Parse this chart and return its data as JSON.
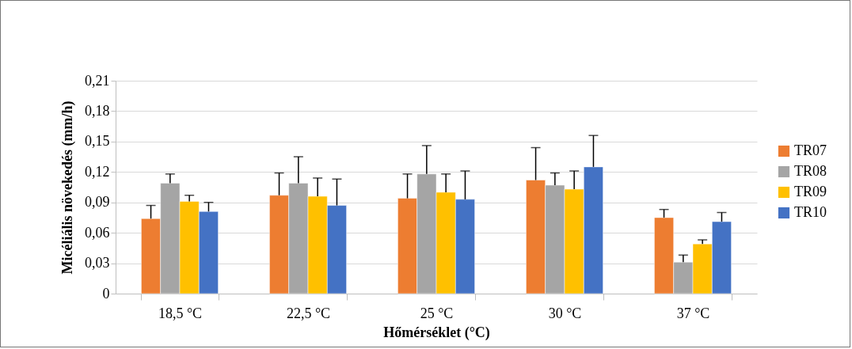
{
  "chart_data": {
    "type": "bar",
    "xlabel": "Hőmérséklet (°C)",
    "ylabel": "Micéliális növekedés (mm/h)",
    "categories": [
      "18,5 °C",
      "22,5 °C",
      "25 °C",
      "30 °C",
      "37 °C"
    ],
    "series": [
      {
        "name": "TR07",
        "color": "#ed7d31",
        "values": [
          0.074,
          0.097,
          0.094,
          0.112,
          0.075
        ],
        "errors": [
          [
            0.074,
            0.087
          ],
          [
            0.097,
            0.119
          ],
          [
            0.094,
            0.118
          ],
          [
            0.112,
            0.144
          ],
          [
            0.075,
            0.083
          ]
        ]
      },
      {
        "name": "TR08",
        "color": "#a5a5a5",
        "values": [
          0.109,
          0.109,
          0.118,
          0.107,
          0.031
        ],
        "errors": [
          [
            0.109,
            0.118
          ],
          [
            0.109,
            0.135
          ],
          [
            0.118,
            0.146
          ],
          [
            0.107,
            0.119
          ],
          [
            0.031,
            0.038
          ]
        ]
      },
      {
        "name": "TR09",
        "color": "#ffc000",
        "values": [
          0.091,
          0.096,
          0.1,
          0.103,
          0.049
        ],
        "errors": [
          [
            0.091,
            0.097
          ],
          [
            0.096,
            0.114
          ],
          [
            0.1,
            0.118
          ],
          [
            0.103,
            0.121
          ],
          [
            0.049,
            0.053
          ]
        ]
      },
      {
        "name": "TR10",
        "color": "#4472c4",
        "values": [
          0.081,
          0.087,
          0.093,
          0.125,
          0.071
        ],
        "errors": [
          [
            0.081,
            0.09
          ],
          [
            0.087,
            0.113
          ],
          [
            0.093,
            0.121
          ],
          [
            0.125,
            0.156
          ],
          [
            0.071,
            0.08
          ]
        ]
      }
    ],
    "ylim": [
      0,
      0.21
    ],
    "yticks": [
      {
        "value": 0,
        "label": "0"
      },
      {
        "value": 0.03,
        "label": "0,03"
      },
      {
        "value": 0.06,
        "label": "0,06"
      },
      {
        "value": 0.09,
        "label": "0,09"
      },
      {
        "value": 0.12,
        "label": "0,12"
      },
      {
        "value": 0.15,
        "label": "0,15"
      },
      {
        "value": 0.18,
        "label": "0,18"
      },
      {
        "value": 0.21,
        "label": "0,21"
      }
    ],
    "grid": "y",
    "legend": "right"
  }
}
